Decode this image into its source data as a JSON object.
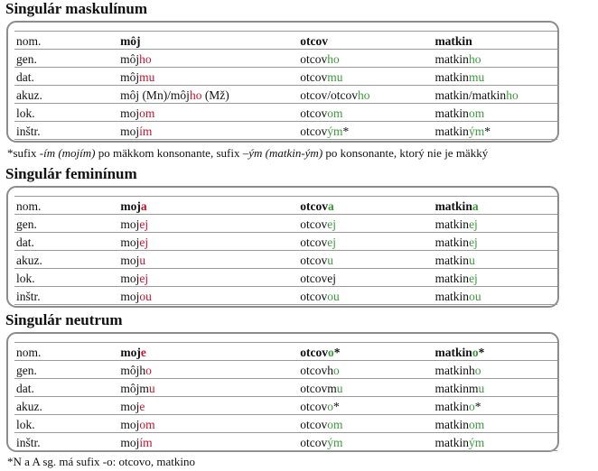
{
  "colors": {
    "ending_red": "#c8102e",
    "ending_green": "#3a9a3a",
    "border": "#8c8c8c"
  },
  "sections": [
    {
      "title": "Singulár maskulínum",
      "rows": [
        [
          [
            {
              "t": "nom."
            }
          ],
          [
            {
              "t": "môj"
            }
          ],
          [
            {
              "t": "otcov"
            }
          ],
          [
            {
              "t": "matkin"
            }
          ]
        ],
        [
          [
            {
              "t": "gen."
            }
          ],
          [
            {
              "t": "môj"
            },
            {
              "t": "ho",
              "c": "r"
            }
          ],
          [
            {
              "t": "otcov"
            },
            {
              "t": "ho",
              "c": "g"
            }
          ],
          [
            {
              "t": "matkin"
            },
            {
              "t": "ho",
              "c": "g"
            }
          ]
        ],
        [
          [
            {
              "t": "dat."
            }
          ],
          [
            {
              "t": "môj"
            },
            {
              "t": "mu",
              "c": "r"
            }
          ],
          [
            {
              "t": "otcov"
            },
            {
              "t": "mu",
              "c": "g"
            }
          ],
          [
            {
              "t": "matkin"
            },
            {
              "t": "mu",
              "c": "g"
            }
          ]
        ],
        [
          [
            {
              "t": "akuz."
            }
          ],
          [
            {
              "t": "môj (Mn)/môj"
            },
            {
              "t": "ho",
              "c": "r"
            },
            {
              "t": " (Mž)"
            }
          ],
          [
            {
              "t": "otcov/otcov"
            },
            {
              "t": "ho",
              "c": "g"
            }
          ],
          [
            {
              "t": "matkin/matkin"
            },
            {
              "t": "ho",
              "c": "g"
            }
          ]
        ],
        [
          [
            {
              "t": "lok."
            }
          ],
          [
            {
              "t": "moj"
            },
            {
              "t": "om",
              "c": "r"
            }
          ],
          [
            {
              "t": "otcov"
            },
            {
              "t": "om",
              "c": "g"
            }
          ],
          [
            {
              "t": "matkin"
            },
            {
              "t": "om",
              "c": "g"
            }
          ]
        ],
        [
          [
            {
              "t": "inštr."
            }
          ],
          [
            {
              "t": "moj"
            },
            {
              "t": "ím",
              "c": "r"
            }
          ],
          [
            {
              "t": "otcov"
            },
            {
              "t": "ým",
              "c": "g"
            },
            {
              "t": "*"
            }
          ],
          [
            {
              "t": "matkin"
            },
            {
              "t": "ým",
              "c": "g"
            },
            {
              "t": "*"
            }
          ]
        ]
      ],
      "note": [
        {
          "t": "*sufix "
        },
        {
          "t": "-ím (mojím)",
          "i": true
        },
        {
          "t": " po mäkkom konsonante, sufix "
        },
        {
          "t": "–ým (matkin-ým)",
          "i": true
        },
        {
          "t": " po konsonante, ktorý nie je mäkký"
        }
      ]
    },
    {
      "title": "Singulár feminínum",
      "rows": [
        [
          [
            {
              "t": "nom."
            }
          ],
          [
            {
              "t": "moj"
            },
            {
              "t": "a",
              "c": "r"
            }
          ],
          [
            {
              "t": "otcov"
            },
            {
              "t": "a",
              "c": "g"
            }
          ],
          [
            {
              "t": "matkin"
            },
            {
              "t": "a",
              "c": "g"
            }
          ]
        ],
        [
          [
            {
              "t": "gen."
            }
          ],
          [
            {
              "t": "moj"
            },
            {
              "t": "ej",
              "c": "r"
            }
          ],
          [
            {
              "t": "otcov"
            },
            {
              "t": "ej",
              "c": "g"
            }
          ],
          [
            {
              "t": "matkin"
            },
            {
              "t": "ej",
              "c": "g"
            }
          ]
        ],
        [
          [
            {
              "t": "dat."
            }
          ],
          [
            {
              "t": "moj"
            },
            {
              "t": "ej",
              "c": "r"
            }
          ],
          [
            {
              "t": "otcov"
            },
            {
              "t": "ej",
              "c": "g"
            }
          ],
          [
            {
              "t": "matkin"
            },
            {
              "t": "ej",
              "c": "g"
            }
          ]
        ],
        [
          [
            {
              "t": "akuz."
            }
          ],
          [
            {
              "t": "moj"
            },
            {
              "t": "u",
              "c": "r"
            }
          ],
          [
            {
              "t": "otcov"
            },
            {
              "t": "u",
              "c": "g"
            }
          ],
          [
            {
              "t": "matkin"
            },
            {
              "t": "u",
              "c": "g"
            }
          ]
        ],
        [
          [
            {
              "t": "lok."
            }
          ],
          [
            {
              "t": "moj"
            },
            {
              "t": "ej",
              "c": "r"
            }
          ],
          [
            {
              "t": "otcovej"
            }
          ],
          [
            {
              "t": "matkin"
            },
            {
              "t": "ej",
              "c": "g"
            }
          ]
        ],
        [
          [
            {
              "t": "inštr."
            }
          ],
          [
            {
              "t": "moj"
            },
            {
              "t": "ou",
              "c": "r"
            }
          ],
          [
            {
              "t": "otcov"
            },
            {
              "t": "ou",
              "c": "g"
            }
          ],
          [
            {
              "t": "matkin"
            },
            {
              "t": "ou",
              "c": "g"
            }
          ]
        ]
      ],
      "note": []
    },
    {
      "title": "Singulár neutrum",
      "rows": [
        [
          [
            {
              "t": "nom."
            }
          ],
          [
            {
              "t": "moj"
            },
            {
              "t": "e",
              "c": "r"
            }
          ],
          [
            {
              "t": "otcov"
            },
            {
              "t": "o",
              "c": "g"
            },
            {
              "t": "*"
            }
          ],
          [
            {
              "t": "matkin"
            },
            {
              "t": "o",
              "c": "g"
            },
            {
              "t": "*"
            }
          ]
        ],
        [
          [
            {
              "t": "gen."
            }
          ],
          [
            {
              "t": "môjh"
            },
            {
              "t": "o",
              "c": "r"
            }
          ],
          [
            {
              "t": "otcovh"
            },
            {
              "t": "o",
              "c": "g"
            }
          ],
          [
            {
              "t": "matkinh"
            },
            {
              "t": "o",
              "c": "g"
            }
          ]
        ],
        [
          [
            {
              "t": "dat."
            }
          ],
          [
            {
              "t": "môjm"
            },
            {
              "t": "u",
              "c": "r"
            }
          ],
          [
            {
              "t": "otcovm"
            },
            {
              "t": "u",
              "c": "g"
            }
          ],
          [
            {
              "t": "matkinm"
            },
            {
              "t": "u",
              "c": "g"
            }
          ]
        ],
        [
          [
            {
              "t": "akuz."
            }
          ],
          [
            {
              "t": "moj"
            },
            {
              "t": "e",
              "c": "r"
            }
          ],
          [
            {
              "t": "otcov"
            },
            {
              "t": "o",
              "c": "g"
            },
            {
              "t": "*"
            }
          ],
          [
            {
              "t": "matkin"
            },
            {
              "t": "o",
              "c": "g"
            },
            {
              "t": "*"
            }
          ]
        ],
        [
          [
            {
              "t": "lok."
            }
          ],
          [
            {
              "t": "moj"
            },
            {
              "t": "om",
              "c": "r"
            }
          ],
          [
            {
              "t": "otcov"
            },
            {
              "t": "om",
              "c": "g"
            }
          ],
          [
            {
              "t": "matkin"
            },
            {
              "t": "om",
              "c": "g"
            }
          ]
        ],
        [
          [
            {
              "t": "inštr."
            }
          ],
          [
            {
              "t": "moj"
            },
            {
              "t": "ím",
              "c": "r"
            }
          ],
          [
            {
              "t": "otcov"
            },
            {
              "t": "ým",
              "c": "g"
            }
          ],
          [
            {
              "t": "matkin"
            },
            {
              "t": "ým",
              "c": "g"
            }
          ]
        ]
      ],
      "note": [
        {
          "t": "*N a A sg. má sufix -o: otcovo, matkino"
        }
      ]
    }
  ]
}
